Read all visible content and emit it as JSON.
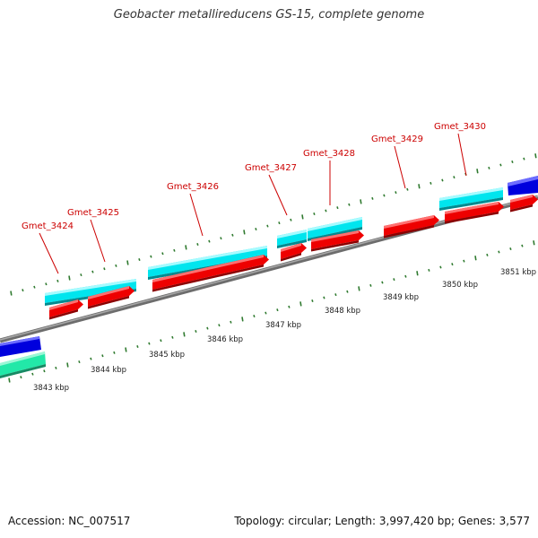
{
  "title": "Geobacter metallireducens GS-15, complete genome",
  "footer": {
    "accession": "Accession: NC_007517",
    "summary": "Topology: circular; Length: 3,997,420 bp; Genes: 3,577"
  },
  "colors": {
    "backbone": "#8a8a8a",
    "tick": "#2f7a2f",
    "label": "#cc0000",
    "gene_cds": "#ee0000",
    "gene_region": "#00e5ee",
    "blue_feature": "#0000dd",
    "green_feature": "#22e8a8"
  },
  "genes": [
    {
      "label": "Gmet_3424"
    },
    {
      "label": "Gmet_3425"
    },
    {
      "label": "Gmet_3426"
    },
    {
      "label": "Gmet_3427"
    },
    {
      "label": "Gmet_3428"
    },
    {
      "label": "Gmet_3429"
    },
    {
      "label": "Gmet_3430"
    }
  ],
  "kbp_labels": [
    {
      "label": "3843 kbp"
    },
    {
      "label": "3844 kbp"
    },
    {
      "label": "3845 kbp"
    },
    {
      "label": "3846 kbp"
    },
    {
      "label": "3847 kbp"
    },
    {
      "label": "3848 kbp"
    },
    {
      "label": "3849 kbp"
    },
    {
      "label": "3850 kbp"
    },
    {
      "label": "3851 kbp"
    }
  ]
}
